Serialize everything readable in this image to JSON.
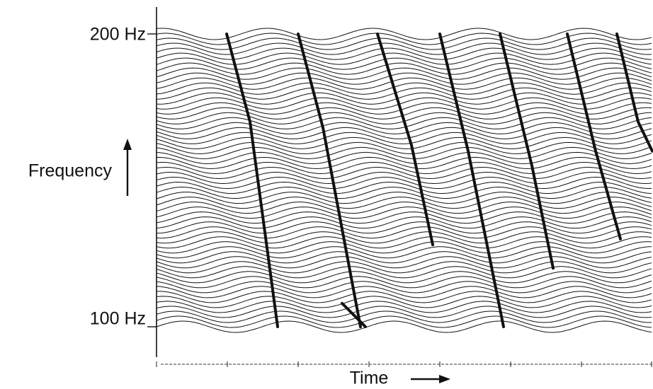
{
  "chart_data": {
    "type": "line",
    "title": "",
    "xlabel": "Time",
    "ylabel": "Frequency",
    "y_tick_labels": [
      "200 Hz",
      "100 Hz"
    ],
    "y_ticks": [
      200,
      100
    ],
    "ylim": [
      100,
      200
    ],
    "xlim": [
      0,
      7
    ],
    "x_time_marks": 7,
    "n_frequency_channels": 60,
    "waveform_periods": 4.7,
    "grid": false,
    "legend": "none",
    "series": [
      {
        "values": [
          [
            0.99,
            200
          ],
          [
            1.32,
            170
          ],
          [
            1.71,
            100
          ]
        ]
      },
      {
        "values": [
          [
            2.0,
            200
          ],
          [
            2.35,
            168
          ],
          [
            2.88,
            100
          ]
        ]
      },
      {
        "values": [
          [
            3.12,
            200
          ],
          [
            3.6,
            162
          ],
          [
            3.9,
            128
          ]
        ]
      },
      {
        "values": [
          [
            2.62,
            108
          ],
          [
            2.95,
            100
          ]
        ]
      },
      {
        "values": [
          [
            4.0,
            200
          ],
          [
            4.4,
            160
          ],
          [
            4.9,
            100
          ]
        ]
      },
      {
        "values": [
          [
            4.85,
            200
          ],
          [
            5.3,
            155
          ],
          [
            5.6,
            120
          ]
        ]
      },
      {
        "values": [
          [
            5.8,
            200
          ],
          [
            6.2,
            160
          ],
          [
            6.55,
            130
          ]
        ]
      },
      {
        "values": [
          [
            6.5,
            200
          ],
          [
            6.8,
            170
          ],
          [
            7.0,
            160
          ]
        ]
      }
    ],
    "colors": {
      "trace": "#111111",
      "background": "#ffffff"
    }
  }
}
